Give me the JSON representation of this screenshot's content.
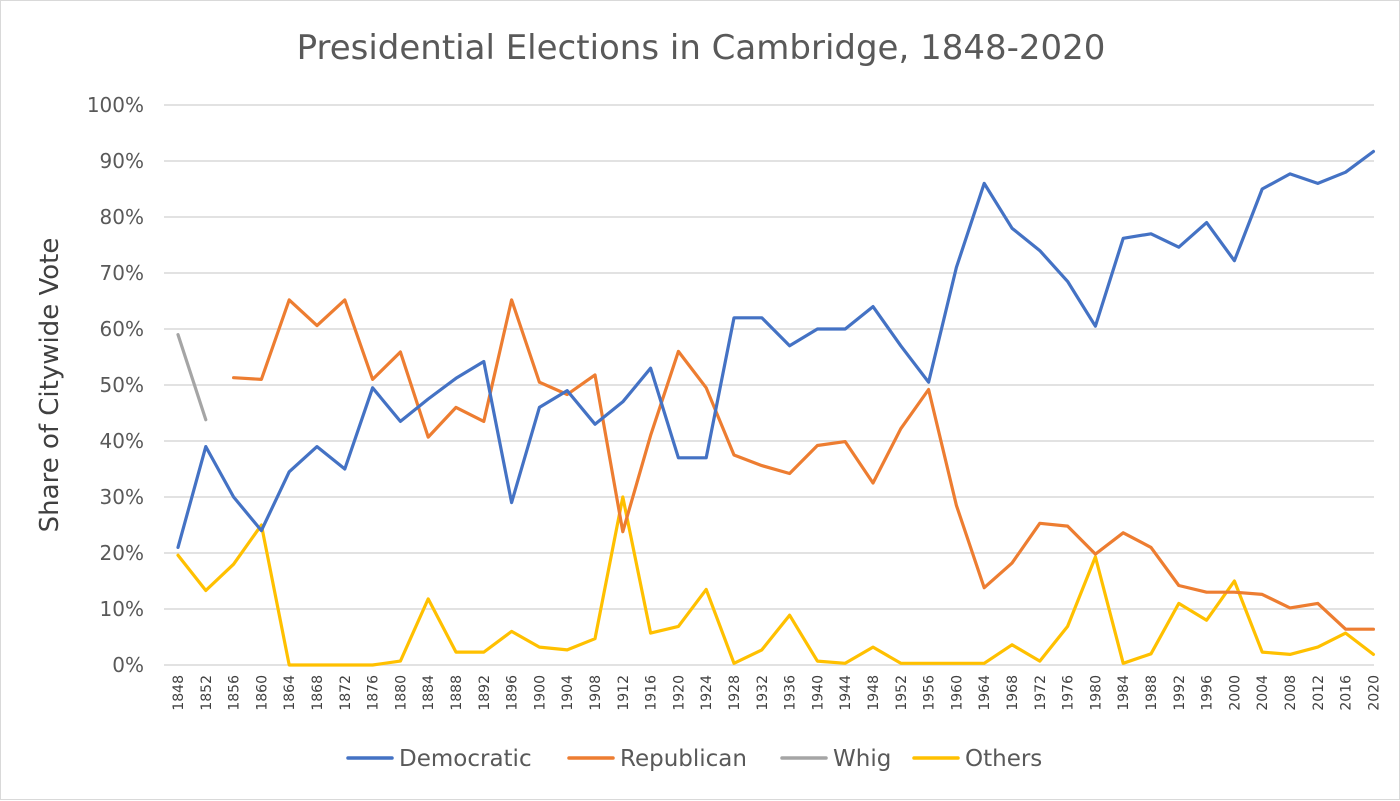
{
  "chart_data": {
    "type": "line",
    "title": "Presidential Elections in Cambridge, 1848-2020",
    "ylabel": "Share of Citywide Vote",
    "xlabel": "",
    "ylim": [
      0,
      100
    ],
    "yticks": [
      "0%",
      "10%",
      "20%",
      "30%",
      "40%",
      "50%",
      "60%",
      "70%",
      "80%",
      "90%",
      "100%"
    ],
    "grid": "horizontal",
    "legend_position": "bottom",
    "categories": [
      "1848",
      "1852",
      "1856",
      "1860",
      "1864",
      "1868",
      "1872",
      "1876",
      "1880",
      "1884",
      "1888",
      "1892",
      "1896",
      "1900",
      "1904",
      "1908",
      "1912",
      "1916",
      "1920",
      "1924",
      "1928",
      "1932",
      "1936",
      "1940",
      "1944",
      "1948",
      "1952",
      "1956",
      "1960",
      "1964",
      "1968",
      "1972",
      "1976",
      "1980",
      "1984",
      "1988",
      "1992",
      "1996",
      "2000",
      "2004",
      "2008",
      "2012",
      "2016",
      "2020"
    ],
    "series": [
      {
        "name": "Democratic",
        "color": "#4472C4",
        "values": [
          21,
          39,
          30,
          24,
          34.5,
          39,
          35,
          49.5,
          43.5,
          47.5,
          51.2,
          54.2,
          29,
          46,
          49,
          43,
          47,
          53,
          37,
          37,
          62,
          62,
          57,
          60,
          60,
          64,
          57,
          50.5,
          71,
          86,
          78,
          74,
          68.5,
          60.5,
          76.2,
          77,
          74.6,
          79,
          72.2,
          85,
          87.7,
          86,
          88,
          91.7
        ]
      },
      {
        "name": "Republican",
        "color": "#ED7D31",
        "values": [
          null,
          null,
          51.3,
          51,
          65.2,
          60.6,
          65.2,
          51,
          55.9,
          40.7,
          46,
          43.5,
          65.2,
          50.5,
          48.3,
          51.8,
          23.8,
          41,
          56,
          49.5,
          37.5,
          35.6,
          34.2,
          39.2,
          39.9,
          32.5,
          42.2,
          49.2,
          28.5,
          13.8,
          18.2,
          25.3,
          24.8,
          19.8,
          23.6,
          21,
          14.2,
          13,
          13,
          12.6,
          10.2,
          11,
          6.4,
          6.4
        ]
      },
      {
        "name": "Whig",
        "color": "#A5A5A5",
        "values": [
          59,
          43.8,
          null,
          null,
          null,
          null,
          null,
          null,
          null,
          null,
          null,
          null,
          null,
          null,
          null,
          null,
          null,
          null,
          null,
          null,
          null,
          null,
          null,
          null,
          null,
          null,
          null,
          null,
          null,
          null,
          null,
          null,
          null,
          null,
          null,
          null,
          null,
          null,
          null,
          null,
          null,
          null,
          null,
          null
        ]
      },
      {
        "name": "Others",
        "color": "#FFC000",
        "values": [
          19.6,
          13.3,
          18,
          25,
          0,
          0,
          0,
          0,
          0.7,
          11.8,
          2.3,
          2.3,
          6,
          3.2,
          2.7,
          4.7,
          30,
          5.7,
          6.9,
          13.5,
          0.3,
          2.7,
          8.9,
          0.7,
          0.3,
          3.2,
          0.3,
          0.3,
          0.3,
          0.3,
          3.6,
          0.7,
          6.9,
          19.3,
          0.3,
          2,
          11,
          8,
          15,
          2.3,
          1.9,
          3.2,
          5.7,
          1.9
        ]
      }
    ]
  }
}
